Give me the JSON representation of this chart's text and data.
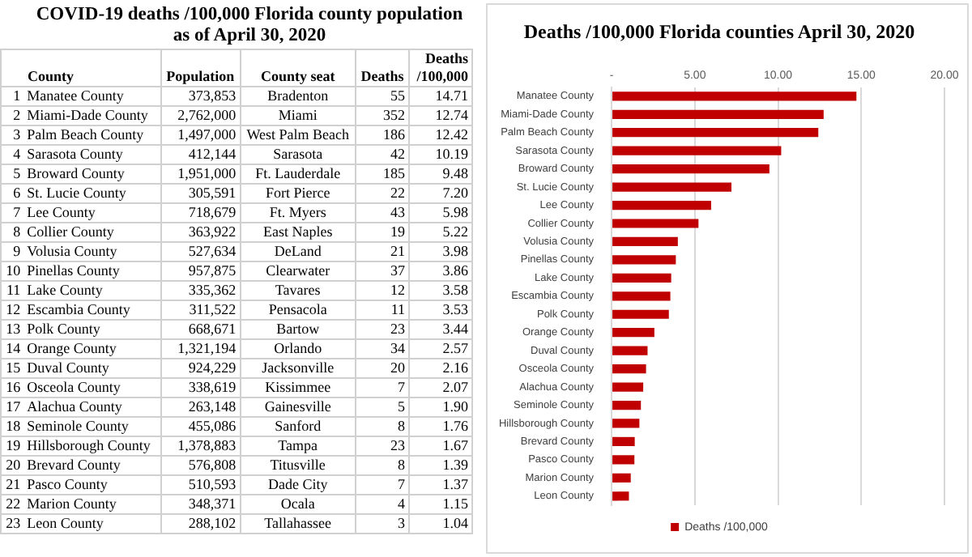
{
  "chart_data": [
    {
      "type": "other",
      "title": "COVID-19 deaths /100,000 Florida county population as of April 30, 2020",
      "annotations": [
        "County",
        "Population",
        "County seat",
        "Deaths",
        "Deaths /100,000",
        "1",
        "Manatee County",
        "373,853",
        "Bradenton",
        "55",
        "14.71",
        "2",
        "Miami-Dade County",
        "2,762,000",
        "Miami",
        "352",
        "12.74",
        "3",
        "Palm Beach County",
        "1,497,000",
        "West Palm Beach",
        "186",
        "12.42",
        "4",
        "Sarasota County",
        "412,144",
        "Sarasota",
        "42",
        "10.19",
        "5",
        "Broward County",
        "1,951,000",
        "Ft. Lauderdale",
        "185",
        "9.48",
        "6",
        "St. Lucie County",
        "305,591",
        "Fort Pierce",
        "22",
        "7.20",
        "7",
        "Lee County",
        "718,679",
        "Ft. Myers",
        "43",
        "5.98",
        "8",
        "Collier County",
        "363,922",
        "East Naples",
        "19",
        "5.22",
        "9",
        "Volusia County",
        "527,634",
        "DeLand",
        "21",
        "3.98",
        "10",
        "Pinellas County",
        "957,875",
        "Clearwater",
        "37",
        "3.86",
        "11",
        "Lake County",
        "335,362",
        "Tavares",
        "12",
        "3.58",
        "12",
        "Escambia County",
        "311,522",
        "Pensacola",
        "11",
        "3.53",
        "13",
        "Polk County",
        "668,671",
        "Bartow",
        "23",
        "3.44",
        "14",
        "Orange County",
        "1,321,194",
        "Orlando",
        "34",
        "2.57",
        "15",
        "Duval County",
        "924,229",
        "Jacksonville",
        "20",
        "2.16",
        "16",
        "Osceola County",
        "338,619",
        "Kissimmee",
        "7",
        "2.07",
        "17",
        "Alachua County",
        "263,148",
        "Gainesville",
        "5",
        "1.90",
        "18",
        "Seminole County",
        "455,086",
        "Sanford",
        "8",
        "1.76",
        "19",
        "Hillsborough County",
        "1,378,883",
        "Tampa",
        "23",
        "1.67",
        "20",
        "Brevard County",
        "576,808",
        "Titusville",
        "8",
        "1.39",
        "21",
        "Pasco County",
        "510,593",
        "Dade City",
        "7",
        "1.37",
        "22",
        "Marion County",
        "348,371",
        "Ocala",
        "4",
        "1.15",
        "23",
        "Leon County",
        "288,102",
        "Tallahassee",
        "3",
        "1.04"
      ]
    },
    {
      "type": "bar",
      "title": "Deaths /100,000 Florida counties April 30, 2020",
      "orientation": "horizontal",
      "categories": [
        "Manatee County",
        "Miami-Dade County",
        "Palm Beach County",
        "Sarasota County",
        "Broward County",
        "St. Lucie County",
        "Lee County",
        "Collier County",
        "Volusia County",
        "Pinellas County",
        "Lake County",
        "Escambia County",
        "Polk County",
        "Orange County",
        "Duval County",
        "Osceola County",
        "Alachua County",
        "Seminole County",
        "Hillsborough County",
        "Brevard County",
        "Pasco County",
        "Marion County",
        "Leon County"
      ],
      "series": [
        {
          "name": "Deaths /100,000",
          "color": "#c00000",
          "values": [
            14.71,
            12.74,
            12.42,
            10.19,
            9.48,
            7.2,
            5.98,
            5.22,
            3.98,
            3.86,
            3.58,
            3.53,
            3.44,
            2.57,
            2.16,
            2.07,
            1.9,
            1.76,
            1.67,
            1.39,
            1.37,
            1.15,
            1.04
          ]
        }
      ],
      "xlim": [
        0,
        20
      ],
      "xticks": [
        {
          "value": 0,
          "label": "-"
        },
        {
          "value": 5,
          "label": "5.00"
        },
        {
          "value": 10,
          "label": "10.00"
        },
        {
          "value": 15,
          "label": "15.00"
        },
        {
          "value": 20,
          "label": "20.00"
        }
      ],
      "grid": "x",
      "legend": "bottom"
    }
  ]
}
